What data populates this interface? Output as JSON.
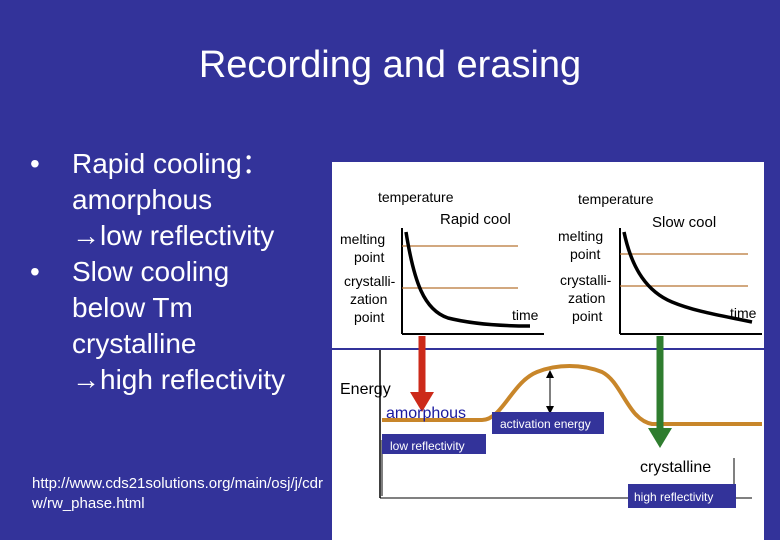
{
  "slide": {
    "title": "Recording and erasing",
    "bullets": [
      {
        "lines": [
          "Rapid cooling：",
          "amorphous",
          "→low reflectivity"
        ]
      },
      {
        "lines": [
          "Slow cooling",
          "below Tm",
          "crystalline",
          "→high reflectivity"
        ]
      }
    ],
    "bullet_marker": "•",
    "source_url": "http://www.cds21solutions.org/main/osj/j/cdrw/rw_phase.html"
  },
  "figure": {
    "left_panel": {
      "axis_label": "temperature",
      "title": "Rapid cool",
      "melting_label": [
        "melting",
        "point"
      ],
      "crystallization_label": [
        "crystalli-",
        "zation",
        "point"
      ],
      "time_label": "time"
    },
    "right_panel": {
      "axis_label": "temperature",
      "title": "Slow cool",
      "melting_label": [
        "melting",
        "point"
      ],
      "crystallization_label": [
        "crystalli-",
        "zation",
        "point"
      ],
      "time_label": "time"
    },
    "energy": {
      "axis_label": "Energy",
      "amorphous_label": "amorphous",
      "low_reflectivity_label": "low reflectivity",
      "activation_label": "activation energy",
      "crystalline_label": "crystalline",
      "high_reflectivity_label": "high reflectivity"
    },
    "colors": {
      "panel_bg": "#ffffff",
      "curve": "#000000",
      "reference_line": "#b87333",
      "arrow_red": "#cc2a1a",
      "arrow_green": "#2f7d2f",
      "energy_curve": "#c8862a",
      "energy_label_blue": "#1a1aa0"
    }
  }
}
